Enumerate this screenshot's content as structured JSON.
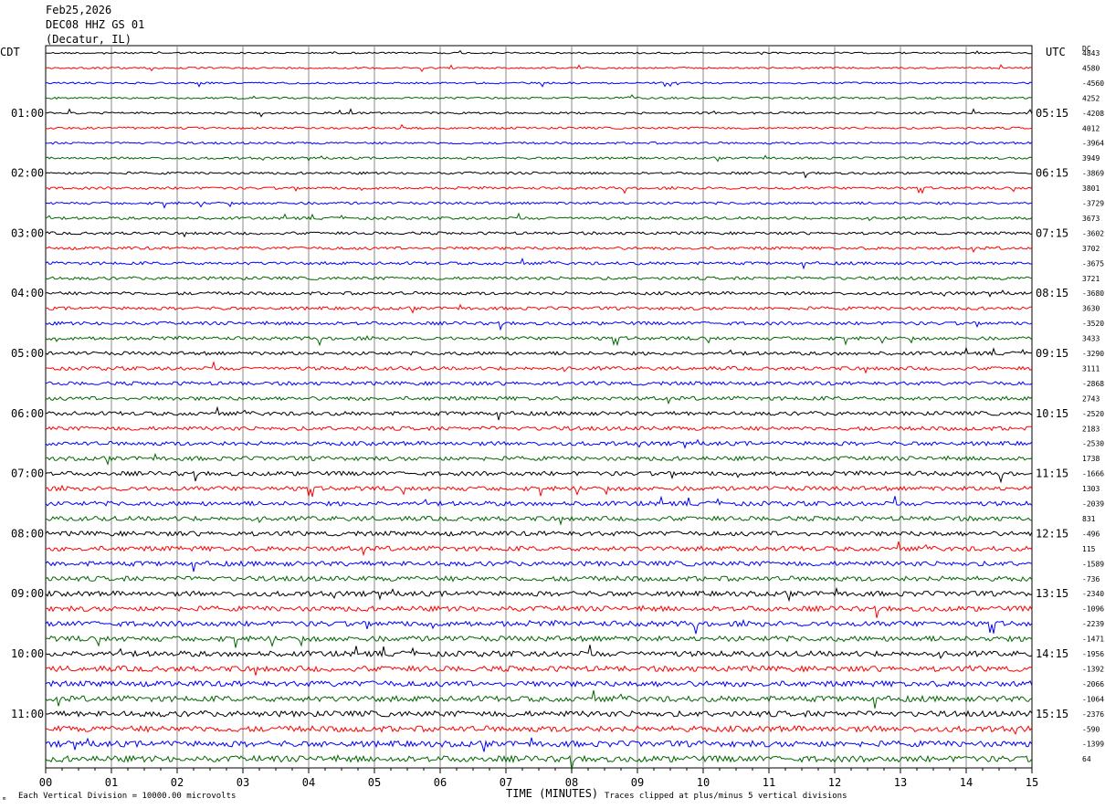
{
  "header": {
    "date": "Feb25,2026",
    "station": "DEC08 HHZ GS 01",
    "location": "(Decatur, IL)"
  },
  "left_timezone": "CDT",
  "right_timezone": "UTC",
  "dc_label": "DC",
  "footer": {
    "scale_note": "Each Vertical Division = 10000.00 microvolts",
    "clip_note": "Traces clipped at plus/minus 5 vertical divisions",
    "corner_mark": "ₘ"
  },
  "chart_data": {
    "type": "line",
    "xlabel": "TIME (MINUTES)",
    "x_ticks": [
      "00",
      "01",
      "02",
      "03",
      "04",
      "05",
      "06",
      "07",
      "08",
      "09",
      "10",
      "11",
      "12",
      "13",
      "14",
      "15"
    ],
    "xlim": [
      0,
      15
    ],
    "left_hour_labels": [
      "01:00",
      "02:00",
      "03:00",
      "04:00",
      "05:00",
      "06:00",
      "07:00",
      "08:00",
      "09:00",
      "10:00",
      "11:00"
    ],
    "right_hour_labels": [
      "05:15",
      "06:15",
      "07:15",
      "08:15",
      "09:15",
      "10:15",
      "11:15",
      "12:15",
      "13:15",
      "14:15",
      "15:15"
    ],
    "trace_colors": [
      "#000000",
      "#ff0000",
      "#0000ff",
      "#006600"
    ],
    "dc_offsets": [
      "4843",
      "4580",
      "-4560",
      "4252",
      "-4208",
      "4012",
      "-3964",
      "3949",
      "-3869",
      "3801",
      "-3729",
      "3673",
      "-3602",
      "3702",
      "-3675",
      "3721",
      "-3680",
      "3630",
      "-3520",
      "3433",
      "-3290",
      "3111",
      "-2868",
      "2743",
      "-2520",
      "2183",
      "-2530",
      "1738",
      "-1666",
      "1303",
      "-2039",
      "831",
      "-496",
      "115",
      "-1589",
      "-736",
      "-2340",
      "-1096",
      "-2239",
      "-1471",
      "-1956",
      "-1392",
      "-2066",
      "-1064",
      "-2376",
      "-590",
      "-1399",
      "64"
    ]
  }
}
